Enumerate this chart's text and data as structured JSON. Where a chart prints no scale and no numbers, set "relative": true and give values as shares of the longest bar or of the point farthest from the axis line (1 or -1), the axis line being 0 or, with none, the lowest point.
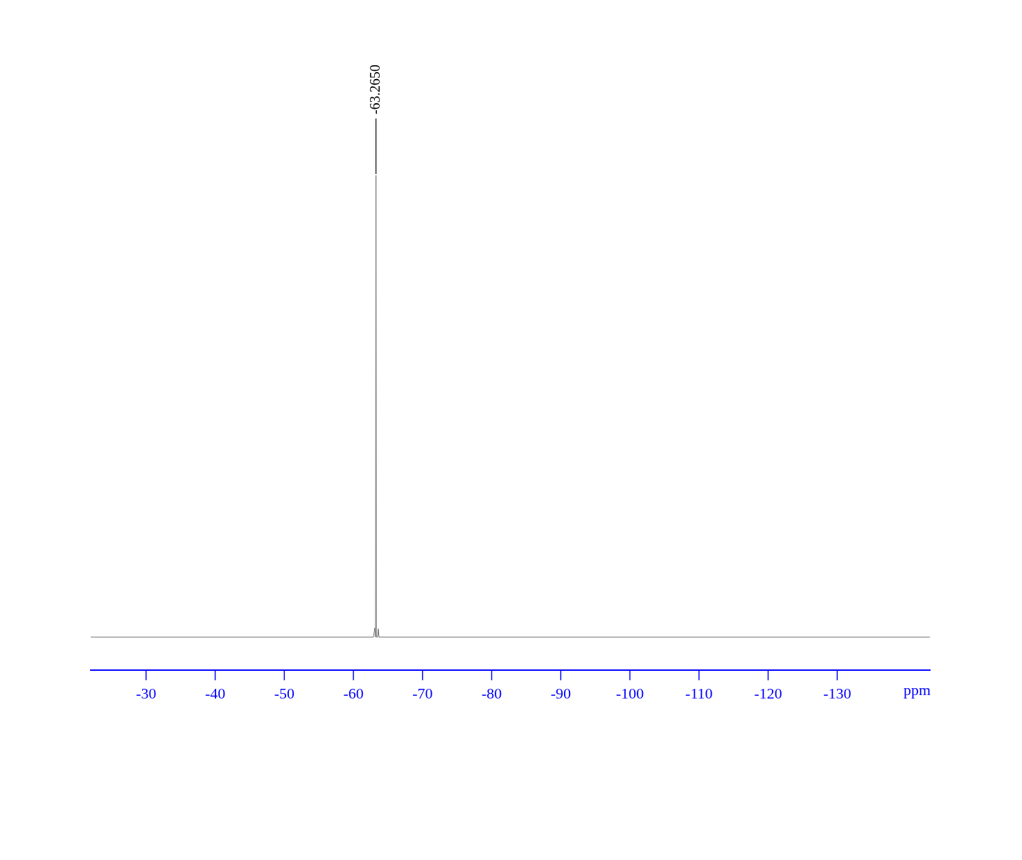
{
  "chart_data": {
    "type": "line",
    "relative": true,
    "xlabel": "ppm",
    "marker": "none",
    "line_style": "solid",
    "grid": false,
    "legend": false,
    "x": [
      -22,
      -62.9,
      -63.0,
      -63.1,
      -63.2,
      -63.265,
      -63.33,
      -63.5,
      -63.6,
      -63.7,
      -143.4
    ],
    "series": [
      {
        "color": "#707070",
        "values": [
          0,
          0,
          0.01,
          0.02,
          0,
          1,
          0,
          0,
          0.018,
          0,
          0
        ]
      }
    ],
    "xlim": [
      -22,
      -143.4
    ],
    "xticks": [
      -30,
      -40,
      -50,
      -60,
      -70,
      -80,
      -90,
      -100,
      -110,
      -120,
      -130
    ],
    "annotations": [
      {
        "text": "-63.2650",
        "x": -63.265,
        "y": 1
      }
    ]
  }
}
